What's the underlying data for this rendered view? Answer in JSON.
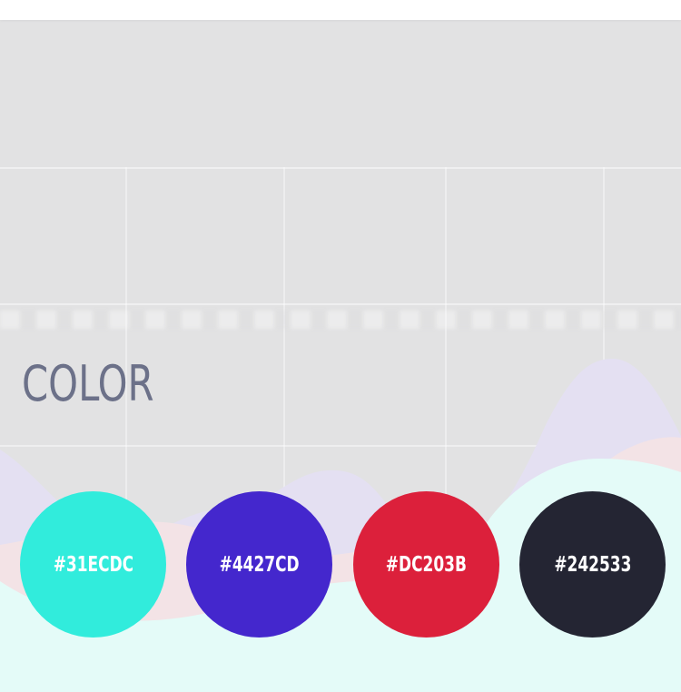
{
  "section": {
    "title": "COLOR"
  },
  "swatches": [
    {
      "label": "#31ECDC",
      "color": "#31ECDC"
    },
    {
      "label": "#4427CD",
      "color": "#4427CD"
    },
    {
      "label": "#DC203B",
      "color": "#DC203B"
    },
    {
      "label": "#242533",
      "color": "#242533"
    }
  ],
  "colors": {
    "panel_background": "#e2e2e3",
    "title_text": "#6c7189",
    "wave_mint": "#e4fbf8",
    "wave_lavender": "#e4e0f2",
    "wave_blush": "#f3e3e6"
  }
}
